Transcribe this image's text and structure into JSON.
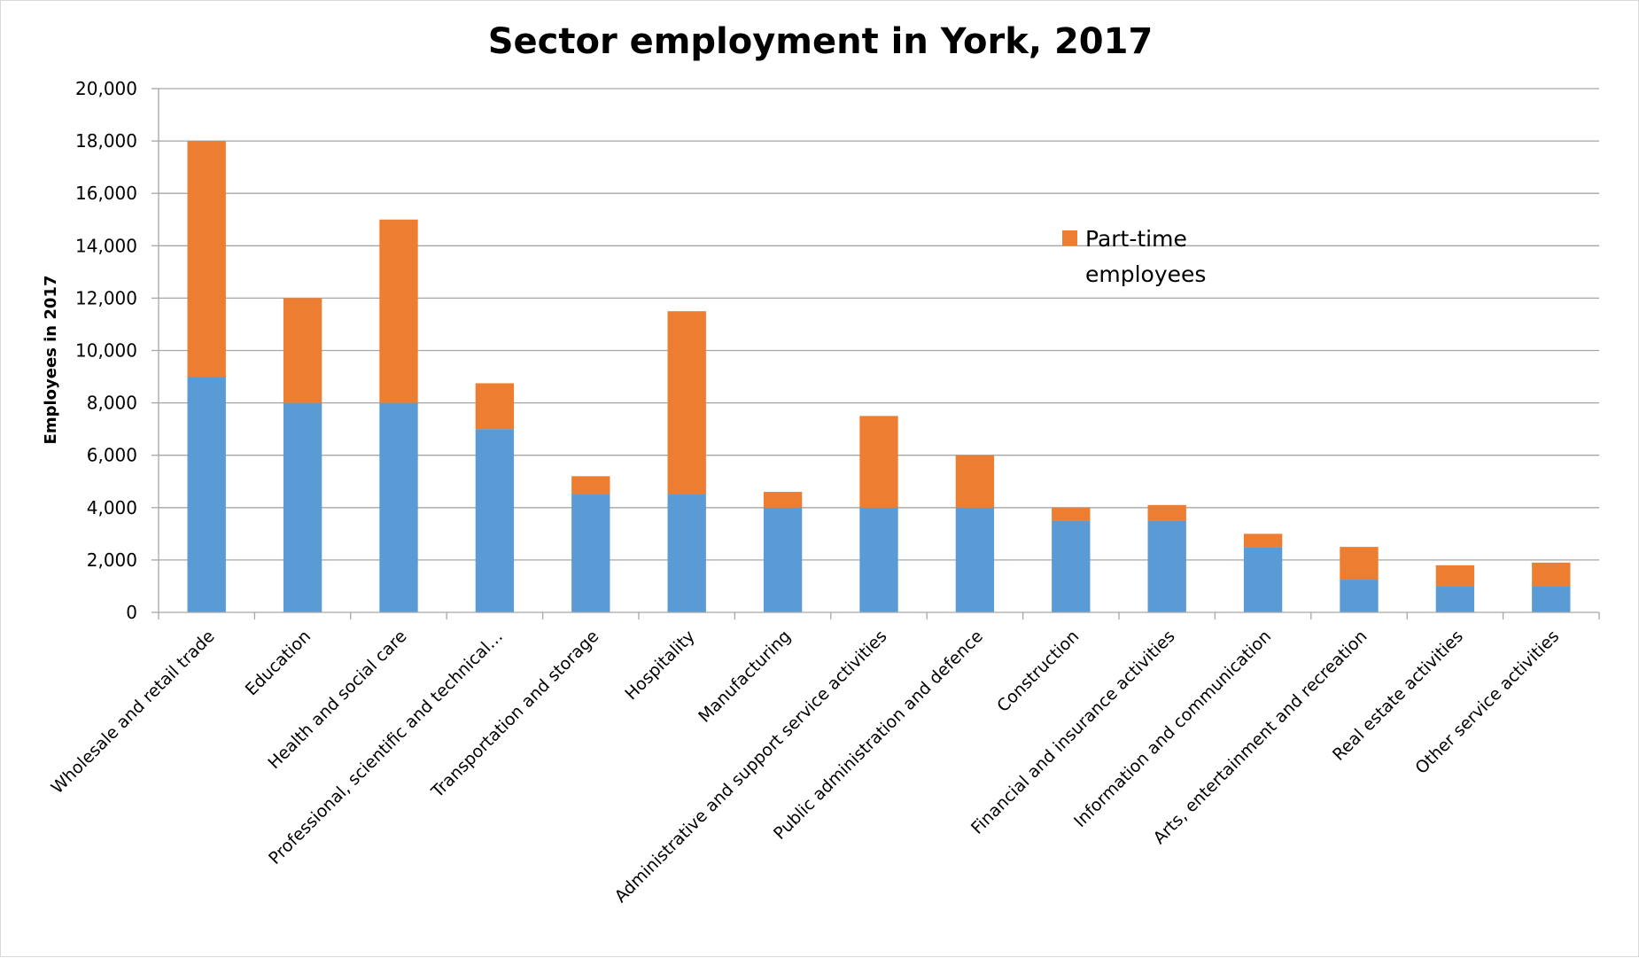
{
  "chart_data": {
    "type": "bar",
    "stacked": true,
    "title": "Sector employment in York, 2017",
    "xlabel": "",
    "ylabel": "Employees in 2017",
    "ylim": [
      0,
      20000
    ],
    "y_ticks": [
      "0",
      "2,000",
      "4,000",
      "6,000",
      "8,000",
      "10,000",
      "12,000",
      "14,000",
      "16,000",
      "18,000",
      "20,000"
    ],
    "grid": true,
    "legend_position": "upper right, inside plot",
    "categories": [
      "Wholesale and retail trade",
      "Education",
      "Health and social care",
      "Professional, scientific and technical…",
      "Transportation and storage",
      "Hospitality",
      "Manufacturing",
      "Administrative and support service activities",
      "Public administration and defence",
      "Construction",
      "Financial and insurance activities",
      "Information and communication",
      "Arts, entertainment and recreation",
      "Real estate activities",
      "Other service activities"
    ],
    "series": [
      {
        "values": [
          9000,
          8000,
          8000,
          7000,
          4500,
          4500,
          4000,
          4000,
          4000,
          3500,
          3500,
          2500,
          1250,
          1000,
          1000
        ],
        "color": "#5b9bd5",
        "in_legend": false
      },
      {
        "name": "Part-time employees",
        "legend_lines": [
          "Part-time",
          "employees"
        ],
        "values": [
          9000,
          4000,
          7000,
          1750,
          700,
          7000,
          600,
          3500,
          2000,
          500,
          600,
          500,
          1250,
          800,
          900
        ],
        "color": "#ed7d31",
        "in_legend": true
      }
    ],
    "colors": {
      "gridline": "#a6a6a6",
      "axis": "#a6a6a6",
      "text": "#000000"
    }
  }
}
